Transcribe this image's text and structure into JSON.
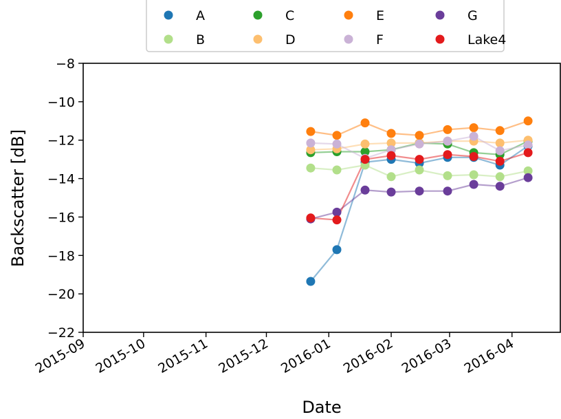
{
  "chart_data": {
    "type": "line",
    "title": "",
    "xlabel": "Date",
    "ylabel": "Backscatter [dB]",
    "xlim": [
      "2015-09-01",
      "2016-04-25"
    ],
    "ylim": [
      -22,
      -8
    ],
    "yticks": [
      -8,
      -10,
      -12,
      -14,
      -16,
      -18,
      -20,
      -22
    ],
    "ytick_labels": [
      "−8",
      "−10",
      "−12",
      "−14",
      "−16",
      "−18",
      "−20",
      "−22"
    ],
    "xticks": [
      "2015-09-01",
      "2015-10-01",
      "2015-11-01",
      "2015-12-01",
      "2016-01-01",
      "2016-02-01",
      "2016-03-01",
      "2016-04-01"
    ],
    "xtick_labels": [
      "2015-09",
      "2015-10",
      "2015-11",
      "2015-12",
      "2016-01",
      "2016-02",
      "2016-03",
      "2016-04"
    ],
    "grid": false,
    "legend_position": "top-center",
    "x": [
      "2015-12-23",
      "2016-01-05",
      "2016-01-19",
      "2016-02-01",
      "2016-02-15",
      "2016-02-29",
      "2016-03-13",
      "2016-03-26",
      "2016-04-09"
    ],
    "series": [
      {
        "name": "A",
        "color": "#1f77b4",
        "values": [
          -19.35,
          -17.7,
          -13.15,
          -13.0,
          -13.2,
          -12.9,
          -12.9,
          -13.3,
          -12.3
        ]
      },
      {
        "name": "B",
        "color": "#b2df8a",
        "values": [
          -13.45,
          -13.55,
          -13.3,
          -13.9,
          -13.55,
          -13.85,
          -13.8,
          -13.9,
          -13.6
        ]
      },
      {
        "name": "C",
        "color": "#2ca02c",
        "values": [
          -12.65,
          -12.6,
          -12.6,
          -12.5,
          -12.15,
          -12.2,
          -12.65,
          -12.75,
          -12.05
        ]
      },
      {
        "name": "D",
        "color": "#fdbf6f",
        "values": [
          -12.5,
          -12.45,
          -12.2,
          -12.15,
          -12.15,
          -12.05,
          -12.05,
          -12.15,
          -12.0
        ]
      },
      {
        "name": "E",
        "color": "#ff7f0e",
        "values": [
          -11.55,
          -11.75,
          -11.1,
          -11.65,
          -11.75,
          -11.45,
          -11.35,
          -11.5,
          -11.0
        ]
      },
      {
        "name": "F",
        "color": "#cab2d6",
        "values": [
          -12.15,
          -12.2,
          -12.95,
          -12.5,
          -12.2,
          -12.05,
          -11.8,
          -12.55,
          -12.25
        ]
      },
      {
        "name": "G",
        "color": "#6a3d9a",
        "values": [
          -16.1,
          -15.75,
          -14.6,
          -14.7,
          -14.65,
          -14.65,
          -14.3,
          -14.4,
          -13.95
        ]
      },
      {
        "name": "Lake4",
        "color": "#e31a1c",
        "values": [
          -16.05,
          -16.15,
          -13.0,
          -12.8,
          -13.0,
          -12.75,
          -12.85,
          -13.1,
          -12.65
        ]
      }
    ]
  }
}
